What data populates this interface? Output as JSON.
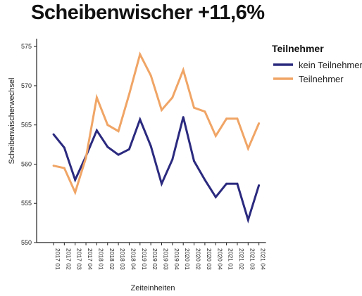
{
  "chart_data": {
    "type": "line",
    "title": "Scheibenwischer +11,6%",
    "xlabel": "Zeiteinheiten",
    "ylabel": "Scheibenwischerwechsel",
    "ylim": [
      550,
      576
    ],
    "yticks": [
      550,
      555,
      560,
      565,
      570,
      575
    ],
    "categories": [
      "2017 01",
      "2017 02",
      "2017 03",
      "2017 04",
      "2018 01",
      "2018 02",
      "2018 03",
      "2018 04",
      "2019 01",
      "2019 02",
      "2019 03",
      "2019 04",
      "2020 01",
      "2020 02",
      "2020 03",
      "2020 04",
      "2021 01",
      "2021 02",
      "2021 03",
      "2021 04"
    ],
    "legend": {
      "title": "Teilnehmer",
      "position": "right"
    },
    "series": [
      {
        "name": "kein Teilnehmer",
        "color": "#2b2a7f",
        "values": [
          563.8,
          562.1,
          558.0,
          561.0,
          564.3,
          562.2,
          561.2,
          561.9,
          565.7,
          562.3,
          557.5,
          560.6,
          566.0,
          560.4,
          558.0,
          555.8,
          557.5,
          557.5,
          552.9,
          557.3
        ]
      },
      {
        "name": "Teilnehmer",
        "color": "#f0a566",
        "values": [
          559.8,
          559.5,
          556.4,
          560.8,
          568.5,
          565.0,
          564.2,
          568.9,
          574.0,
          571.3,
          566.9,
          568.5,
          572.0,
          567.2,
          566.7,
          563.6,
          565.8,
          565.8,
          562.0,
          565.2
        ]
      }
    ]
  }
}
